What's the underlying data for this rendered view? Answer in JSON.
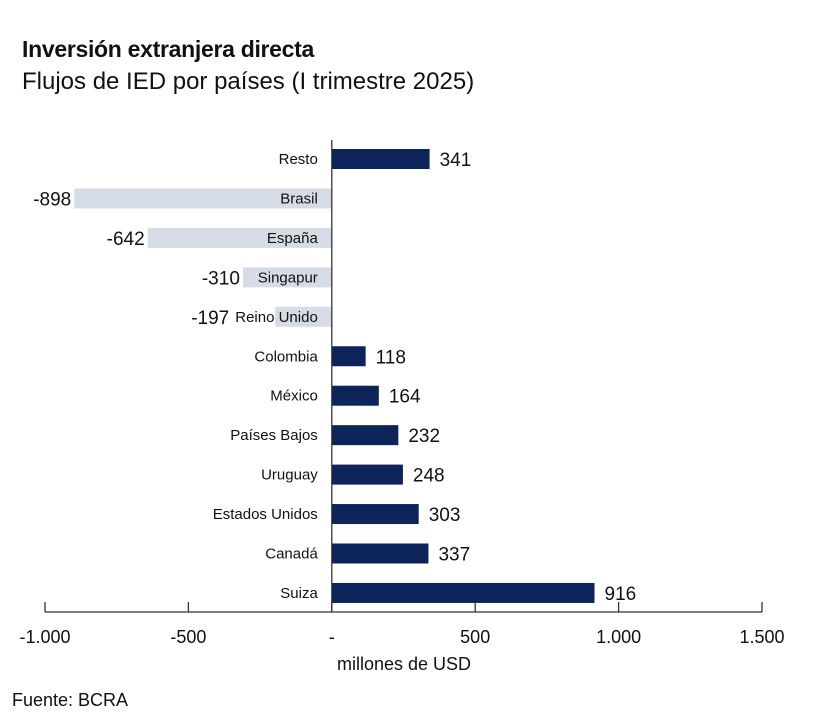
{
  "title": "Inversión extranjera directa",
  "subtitle": "Flujos de IED por países (I trimestre 2025)",
  "source": "Fuente: BCRA",
  "colors": {
    "positive": "#0c2459",
    "negative": "#d6dce6",
    "axis": "#333333"
  },
  "chart_data": {
    "type": "bar",
    "orientation": "horizontal",
    "title": "Inversión extranjera directa",
    "subtitle": "Flujos de IED por países (I trimestre 2025)",
    "categories": [
      "Resto",
      "Brasil",
      "España",
      "Singapur",
      "Reino Unido",
      "Colombia",
      "México",
      "Países Bajos",
      "Uruguay",
      "Estados Unidos",
      "Canadá",
      "Suiza"
    ],
    "values": [
      341,
      -898,
      -642,
      -310,
      -197,
      118,
      164,
      232,
      248,
      303,
      337,
      916
    ],
    "value_labels": [
      "341",
      "-898",
      "-642",
      "-310",
      "-197",
      "118",
      "164",
      "232",
      "248",
      "303",
      "337",
      "916"
    ],
    "xlabel": "millones de USD",
    "xlim": [
      -1000,
      1500
    ],
    "xticks": [
      -1000,
      -500,
      0,
      500,
      1000,
      1500
    ],
    "xtick_labels": [
      "-1.000",
      "-500",
      "-",
      "500",
      "1.000",
      "1.500"
    ],
    "grid": false,
    "legend": "none"
  }
}
